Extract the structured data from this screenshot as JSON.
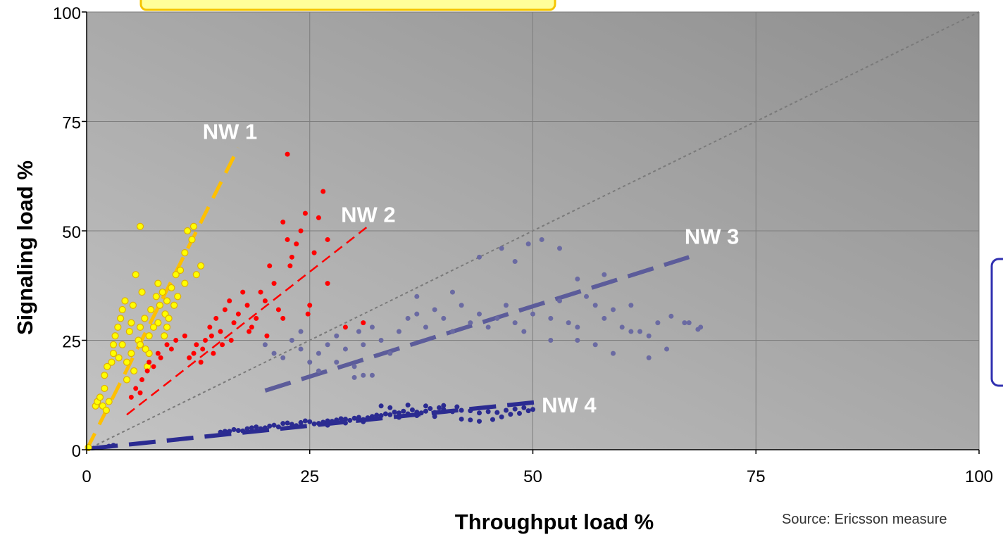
{
  "chart_data": {
    "type": "scatter",
    "xlabel": "Throughput load %",
    "ylabel": "Signaling load %",
    "xlim": [
      0,
      100
    ],
    "ylim": [
      0,
      100
    ],
    "x_ticks": [
      "0",
      "25",
      "50",
      "75",
      "100"
    ],
    "y_ticks": [
      "0",
      "25",
      "50",
      "75",
      "100"
    ],
    "grid": true,
    "source": "Source: Ericsson measure",
    "reference_line": {
      "from": [
        0,
        0
      ],
      "to": [
        100,
        100
      ],
      "color": "#7a7a7a"
    },
    "series": [
      {
        "name": "NW 1",
        "color": "#ffff00",
        "label_at": [
          13,
          71
        ],
        "trend": {
          "from": [
            0,
            0
          ],
          "to": [
            17,
            69
          ],
          "color": "#ffc000"
        },
        "points": [
          [
            0.2,
            0.5
          ],
          [
            1,
            10
          ],
          [
            1.2,
            11
          ],
          [
            1.5,
            12
          ],
          [
            1.8,
            10
          ],
          [
            2,
            14
          ],
          [
            2,
            17
          ],
          [
            2.3,
            19
          ],
          [
            2.5,
            11
          ],
          [
            2.8,
            20
          ],
          [
            3,
            22
          ],
          [
            3,
            24
          ],
          [
            3.2,
            26
          ],
          [
            3.5,
            28
          ],
          [
            3.8,
            30
          ],
          [
            4,
            24
          ],
          [
            4,
            32
          ],
          [
            4.3,
            34
          ],
          [
            4.5,
            16
          ],
          [
            4.5,
            20
          ],
          [
            4.8,
            27
          ],
          [
            5,
            22
          ],
          [
            5,
            29
          ],
          [
            5.2,
            33
          ],
          [
            5.5,
            40
          ],
          [
            5.8,
            25
          ],
          [
            6,
            24
          ],
          [
            6,
            28
          ],
          [
            6,
            51
          ],
          [
            6.2,
            36
          ],
          [
            6.5,
            30
          ],
          [
            6.8,
            19
          ],
          [
            7,
            22
          ],
          [
            7,
            26
          ],
          [
            7.2,
            32
          ],
          [
            7.5,
            28
          ],
          [
            7.8,
            35
          ],
          [
            8,
            29
          ],
          [
            8,
            38
          ],
          [
            8.2,
            33
          ],
          [
            8.5,
            36
          ],
          [
            8.8,
            31
          ],
          [
            9,
            34
          ],
          [
            9,
            28
          ],
          [
            9.2,
            30
          ],
          [
            9.5,
            37
          ],
          [
            9.8,
            33
          ],
          [
            10,
            40
          ],
          [
            10.2,
            35
          ],
          [
            10.5,
            41
          ],
          [
            11,
            38
          ],
          [
            11,
            45
          ],
          [
            11.3,
            50
          ],
          [
            11.8,
            48
          ],
          [
            12,
            51
          ],
          [
            12.3,
            40
          ],
          [
            12.8,
            42
          ],
          [
            2.2,
            9
          ],
          [
            3.6,
            21
          ],
          [
            5.3,
            18
          ],
          [
            6.6,
            23
          ],
          [
            8.7,
            26
          ]
        ]
      },
      {
        "name": "NW 2",
        "color": "#ff0000",
        "label_at": [
          28.5,
          52
        ],
        "trend": {
          "from": [
            4.5,
            8
          ],
          "to": [
            31.5,
            51
          ],
          "color": "#ff0000"
        },
        "points": [
          [
            5,
            12
          ],
          [
            5.5,
            14
          ],
          [
            6,
            13
          ],
          [
            6.2,
            16
          ],
          [
            6.8,
            18
          ],
          [
            7,
            20
          ],
          [
            7.5,
            19
          ],
          [
            8,
            22
          ],
          [
            8.3,
            21
          ],
          [
            9,
            24
          ],
          [
            9.5,
            23
          ],
          [
            10,
            25
          ],
          [
            11,
            26
          ],
          [
            11.5,
            21
          ],
          [
            12,
            22
          ],
          [
            12.3,
            24
          ],
          [
            12.8,
            20
          ],
          [
            13,
            23
          ],
          [
            13.3,
            25
          ],
          [
            13.8,
            28
          ],
          [
            14,
            26
          ],
          [
            14.5,
            30
          ],
          [
            15,
            27
          ],
          [
            15.5,
            32
          ],
          [
            16,
            34
          ],
          [
            16.5,
            29
          ],
          [
            17,
            31
          ],
          [
            17.5,
            36
          ],
          [
            18,
            33
          ],
          [
            18.5,
            28
          ],
          [
            19,
            30
          ],
          [
            19.5,
            36
          ],
          [
            20,
            34
          ],
          [
            20.5,
            42
          ],
          [
            21,
            38
          ],
          [
            21.5,
            32
          ],
          [
            22,
            30
          ],
          [
            22,
            52
          ],
          [
            22.5,
            48
          ],
          [
            22.5,
            67.5
          ],
          [
            23,
            44
          ],
          [
            23.5,
            47
          ],
          [
            24,
            50
          ],
          [
            24.5,
            54
          ],
          [
            25,
            33
          ],
          [
            25.5,
            45
          ],
          [
            26,
            53
          ],
          [
            26.5,
            59
          ],
          [
            27,
            38
          ],
          [
            27,
            48
          ],
          [
            29,
            28
          ],
          [
            31,
            29
          ],
          [
            22.8,
            42
          ],
          [
            24.8,
            31
          ],
          [
            16.2,
            25
          ],
          [
            18.2,
            27
          ],
          [
            20.2,
            26
          ],
          [
            14.2,
            22
          ],
          [
            15.2,
            24
          ]
        ]
      },
      {
        "name": "NW 3",
        "color": "#6a6aa2",
        "label_at": [
          67,
          47
        ],
        "trend": {
          "from": [
            20,
            13.5
          ],
          "to": [
            67.5,
            44
          ],
          "color": "#5c5c9a"
        },
        "points": [
          [
            20,
            24
          ],
          [
            21,
            22
          ],
          [
            22,
            21
          ],
          [
            23,
            25
          ],
          [
            24,
            23
          ],
          [
            25,
            20
          ],
          [
            26,
            22
          ],
          [
            27,
            24
          ],
          [
            28,
            26
          ],
          [
            29,
            23
          ],
          [
            30,
            19
          ],
          [
            30.5,
            27
          ],
          [
            31,
            24
          ],
          [
            32,
            28
          ],
          [
            33,
            25
          ],
          [
            34,
            22
          ],
          [
            35,
            27
          ],
          [
            36,
            30
          ],
          [
            37,
            31
          ],
          [
            38,
            28
          ],
          [
            39,
            32
          ],
          [
            40,
            30
          ],
          [
            41,
            27
          ],
          [
            42,
            33
          ],
          [
            43,
            29
          ],
          [
            44,
            31
          ],
          [
            45,
            28
          ],
          [
            46,
            30
          ],
          [
            46.5,
            46
          ],
          [
            47,
            33
          ],
          [
            48,
            29
          ],
          [
            49,
            27
          ],
          [
            49.5,
            47
          ],
          [
            50,
            31
          ],
          [
            51,
            48
          ],
          [
            52,
            30
          ],
          [
            53,
            34
          ],
          [
            54,
            29
          ],
          [
            55,
            28
          ],
          [
            56,
            35
          ],
          [
            57,
            33
          ],
          [
            58,
            30
          ],
          [
            59,
            32
          ],
          [
            60,
            28
          ],
          [
            61,
            33
          ],
          [
            62,
            27
          ],
          [
            63,
            26
          ],
          [
            64,
            29
          ],
          [
            65.5,
            30.5
          ],
          [
            67,
            29
          ],
          [
            67.5,
            29
          ],
          [
            68.5,
            27.5
          ],
          [
            68.8,
            28
          ],
          [
            44,
            44
          ],
          [
            48,
            43
          ],
          [
            53,
            46
          ],
          [
            55,
            39
          ],
          [
            58,
            40
          ],
          [
            37,
            35
          ],
          [
            41,
            36
          ],
          [
            30,
            16.5
          ],
          [
            31,
            17
          ],
          [
            32,
            17
          ],
          [
            52,
            25
          ],
          [
            55,
            25
          ],
          [
            57,
            24
          ],
          [
            59,
            22
          ],
          [
            61,
            27
          ],
          [
            63,
            21
          ],
          [
            65,
            23
          ],
          [
            24,
            27
          ],
          [
            26,
            18
          ],
          [
            28,
            20
          ]
        ]
      },
      {
        "name": "NW 4",
        "color": "#2b2b91",
        "label_at": [
          51,
          8.5
        ],
        "trend": {
          "from": [
            0.5,
            0.3
          ],
          "to": [
            51,
            11
          ],
          "color": "#2b2b91"
        },
        "points": [
          [
            2.5,
            0.8
          ],
          [
            3,
            1
          ],
          [
            15,
            4
          ],
          [
            16,
            4.2
          ],
          [
            17,
            4.4
          ],
          [
            18,
            4.8
          ],
          [
            19,
            5.2
          ],
          [
            20,
            5
          ],
          [
            21,
            5.6
          ],
          [
            22,
            6
          ],
          [
            23,
            5.8
          ],
          [
            24,
            6.2
          ],
          [
            25,
            6.4
          ],
          [
            26,
            6
          ],
          [
            27,
            6.6
          ],
          [
            28,
            6.8
          ],
          [
            29,
            7
          ],
          [
            30,
            7.2
          ],
          [
            31,
            6.9
          ],
          [
            32,
            7.6
          ],
          [
            33,
            7.8
          ],
          [
            34,
            8
          ],
          [
            35,
            8.4
          ],
          [
            36,
            8.2
          ],
          [
            37,
            8.6
          ],
          [
            38,
            8.8
          ],
          [
            39,
            8.5
          ],
          [
            40,
            9.2
          ],
          [
            41,
            8.7
          ],
          [
            42,
            9
          ],
          [
            43,
            8.9
          ],
          [
            44,
            8.4
          ],
          [
            45,
            8.7
          ],
          [
            46,
            8.5
          ],
          [
            47,
            9
          ],
          [
            48,
            9.3
          ],
          [
            49,
            9.6
          ],
          [
            50,
            9.2
          ],
          [
            15.5,
            4.2
          ],
          [
            16.5,
            4.6
          ],
          [
            17.5,
            4.3
          ],
          [
            18.5,
            5
          ],
          [
            19.5,
            4.8
          ],
          [
            20.5,
            5.4
          ],
          [
            21.5,
            5.2
          ],
          [
            22.5,
            6.1
          ],
          [
            23.5,
            5.5
          ],
          [
            24.5,
            6.6
          ],
          [
            25.5,
            5.9
          ],
          [
            26.5,
            6.3
          ],
          [
            27.5,
            6.5
          ],
          [
            28.5,
            7.1
          ],
          [
            29.5,
            6.7
          ],
          [
            30.5,
            7.4
          ],
          [
            31.5,
            7.3
          ],
          [
            32.5,
            7.9
          ],
          [
            33.5,
            8.2
          ],
          [
            34.5,
            8.6
          ],
          [
            35.5,
            8.8
          ],
          [
            36.5,
            9.1
          ],
          [
            37.5,
            8.4
          ],
          [
            38.5,
            9.4
          ],
          [
            39.5,
            9.6
          ],
          [
            41.5,
            9.8
          ],
          [
            33,
            10
          ],
          [
            34,
            9.6
          ],
          [
            36,
            10.2
          ],
          [
            38,
            10
          ],
          [
            40,
            10.1
          ],
          [
            42,
            7
          ],
          [
            43,
            6.8
          ],
          [
            44,
            6.5
          ],
          [
            45.5,
            6.9
          ],
          [
            46.5,
            7.5
          ],
          [
            47.5,
            8.1
          ],
          [
            48.5,
            8.3
          ],
          [
            49.5,
            8.9
          ],
          [
            27,
            5.6
          ],
          [
            29,
            6.1
          ],
          [
            31,
            6.4
          ],
          [
            35,
            7.4
          ],
          [
            37,
            7.8
          ],
          [
            39,
            7.6
          ]
        ]
      }
    ]
  }
}
